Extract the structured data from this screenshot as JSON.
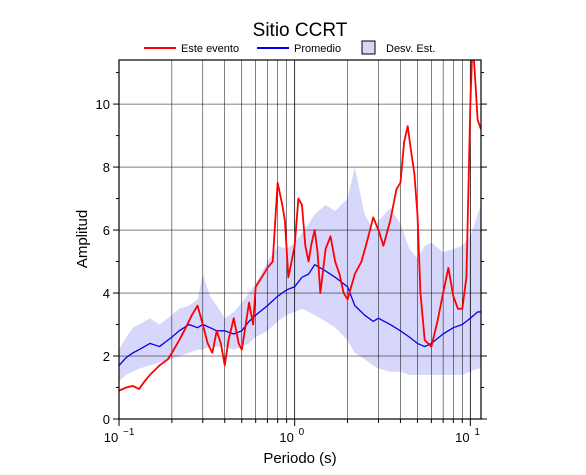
{
  "chart_data": {
    "type": "line",
    "title": "Sitio CCRT",
    "xlabel": "Periodo (s)",
    "ylabel": "Amplitud",
    "x_scale": "log",
    "xlim": [
      0.1,
      11.5
    ],
    "ylim": [
      0,
      11.4
    ],
    "grid": true,
    "legend_position": "top",
    "x_tick_labels": [
      {
        "value": 0.1,
        "base": "10",
        "exp": "−1"
      },
      {
        "value": 1,
        "base": "10",
        "exp": "0"
      },
      {
        "value": 10,
        "base": "10",
        "exp": "1"
      }
    ],
    "y_ticks": [
      0,
      2,
      4,
      6,
      8,
      10
    ],
    "y_tick_labels": [
      "0",
      "2",
      "4",
      "6",
      "8",
      "10"
    ],
    "legend": {
      "red": "Este evento",
      "blue": "Promedio",
      "band": "Desv. Est."
    },
    "colors": {
      "event": "#ff0000",
      "average": "#0000ee",
      "band_fill": "#d7d7fb",
      "band_edge": "#9999cc"
    },
    "band": {
      "x": [
        0.1,
        0.11,
        0.12,
        0.13,
        0.15,
        0.17,
        0.2,
        0.22,
        0.25,
        0.28,
        0.3,
        0.33,
        0.36,
        0.4,
        0.45,
        0.5,
        0.55,
        0.6,
        0.7,
        0.8,
        0.9,
        1.0,
        1.1,
        1.2,
        1.3,
        1.5,
        1.7,
        2.0,
        2.2,
        2.5,
        2.8,
        3.0,
        3.5,
        4.0,
        4.5,
        5.0,
        5.5,
        6.0,
        7.0,
        8.0,
        9.0,
        10.0,
        11.0,
        11.5
      ],
      "upper": [
        2.2,
        2.6,
        2.9,
        3.0,
        3.2,
        3.0,
        3.3,
        3.5,
        3.6,
        3.8,
        4.6,
        3.9,
        3.6,
        3.2,
        3.4,
        3.7,
        4.0,
        4.3,
        5.0,
        5.5,
        5.4,
        5.6,
        5.9,
        6.2,
        6.5,
        6.8,
        6.6,
        7.0,
        8.0,
        6.5,
        6.0,
        6.3,
        6.7,
        6.2,
        5.4,
        5.1,
        5.5,
        5.6,
        5.3,
        5.4,
        5.5,
        5.8,
        6.5,
        6.8
      ],
      "lower": [
        1.2,
        1.4,
        1.5,
        1.6,
        1.7,
        1.8,
        1.9,
        2.0,
        2.1,
        2.2,
        2.2,
        2.3,
        2.3,
        2.3,
        2.2,
        2.3,
        2.4,
        2.6,
        2.8,
        3.1,
        3.3,
        3.4,
        3.5,
        3.4,
        3.3,
        3.1,
        2.9,
        2.5,
        2.1,
        1.9,
        1.7,
        1.6,
        1.5,
        1.5,
        1.4,
        1.4,
        1.4,
        1.4,
        1.4,
        1.4,
        1.4,
        1.5,
        1.6,
        1.6
      ]
    },
    "series": [
      {
        "name": "Promedio",
        "x": [
          0.1,
          0.11,
          0.12,
          0.13,
          0.15,
          0.17,
          0.2,
          0.22,
          0.25,
          0.28,
          0.3,
          0.33,
          0.36,
          0.4,
          0.45,
          0.5,
          0.55,
          0.6,
          0.7,
          0.8,
          0.9,
          1.0,
          1.1,
          1.2,
          1.3,
          1.5,
          1.7,
          2.0,
          2.2,
          2.5,
          2.8,
          3.0,
          3.5,
          4.0,
          4.5,
          5.0,
          5.5,
          6.0,
          7.0,
          8.0,
          9.0,
          10.0,
          11.0,
          11.5
        ],
        "y": [
          1.7,
          1.95,
          2.1,
          2.2,
          2.4,
          2.3,
          2.6,
          2.8,
          3.0,
          2.9,
          3.0,
          2.9,
          2.8,
          2.8,
          2.7,
          2.8,
          3.1,
          3.3,
          3.6,
          3.9,
          4.1,
          4.2,
          4.5,
          4.6,
          4.9,
          4.7,
          4.5,
          4.2,
          3.6,
          3.3,
          3.1,
          3.2,
          3.0,
          2.8,
          2.6,
          2.4,
          2.3,
          2.4,
          2.7,
          2.9,
          3.0,
          3.2,
          3.4,
          3.4
        ]
      },
      {
        "name": "Este evento",
        "x": [
          0.1,
          0.11,
          0.12,
          0.13,
          0.14,
          0.15,
          0.17,
          0.19,
          0.2,
          0.22,
          0.24,
          0.26,
          0.28,
          0.3,
          0.32,
          0.34,
          0.36,
          0.38,
          0.4,
          0.42,
          0.45,
          0.48,
          0.5,
          0.52,
          0.55,
          0.58,
          0.6,
          0.65,
          0.7,
          0.75,
          0.8,
          0.85,
          0.88,
          0.92,
          0.96,
          1.0,
          1.05,
          1.1,
          1.15,
          1.2,
          1.25,
          1.3,
          1.35,
          1.4,
          1.5,
          1.6,
          1.7,
          1.8,
          1.9,
          2.0,
          2.2,
          2.4,
          2.6,
          2.8,
          3.0,
          3.2,
          3.5,
          3.8,
          4.0,
          4.2,
          4.4,
          4.6,
          4.8,
          5.0,
          5.2,
          5.5,
          6.0,
          6.5,
          7.0,
          7.5,
          8.0,
          8.5,
          9.0,
          9.5,
          10.0,
          10.3,
          10.6,
          11.0,
          11.5
        ],
        "y": [
          0.9,
          1.0,
          1.05,
          0.95,
          1.2,
          1.4,
          1.7,
          1.9,
          2.1,
          2.5,
          2.9,
          3.3,
          3.6,
          3.0,
          2.4,
          2.1,
          2.8,
          2.4,
          1.7,
          2.5,
          3.2,
          2.4,
          2.2,
          2.8,
          3.7,
          3.0,
          4.2,
          4.5,
          4.8,
          5.0,
          7.5,
          6.8,
          6.3,
          4.5,
          5.0,
          5.5,
          7.0,
          6.8,
          5.5,
          5.0,
          5.6,
          6.0,
          5.3,
          4.0,
          5.4,
          5.8,
          5.0,
          4.6,
          4.0,
          3.8,
          4.6,
          5.0,
          5.7,
          6.4,
          6.0,
          5.5,
          6.3,
          7.3,
          7.5,
          8.8,
          9.3,
          8.5,
          7.8,
          6.5,
          4.0,
          2.5,
          2.3,
          3.1,
          4.0,
          4.8,
          3.9,
          3.5,
          3.5,
          4.5,
          10.0,
          12.0,
          11.0,
          9.5,
          9.2
        ]
      }
    ]
  }
}
